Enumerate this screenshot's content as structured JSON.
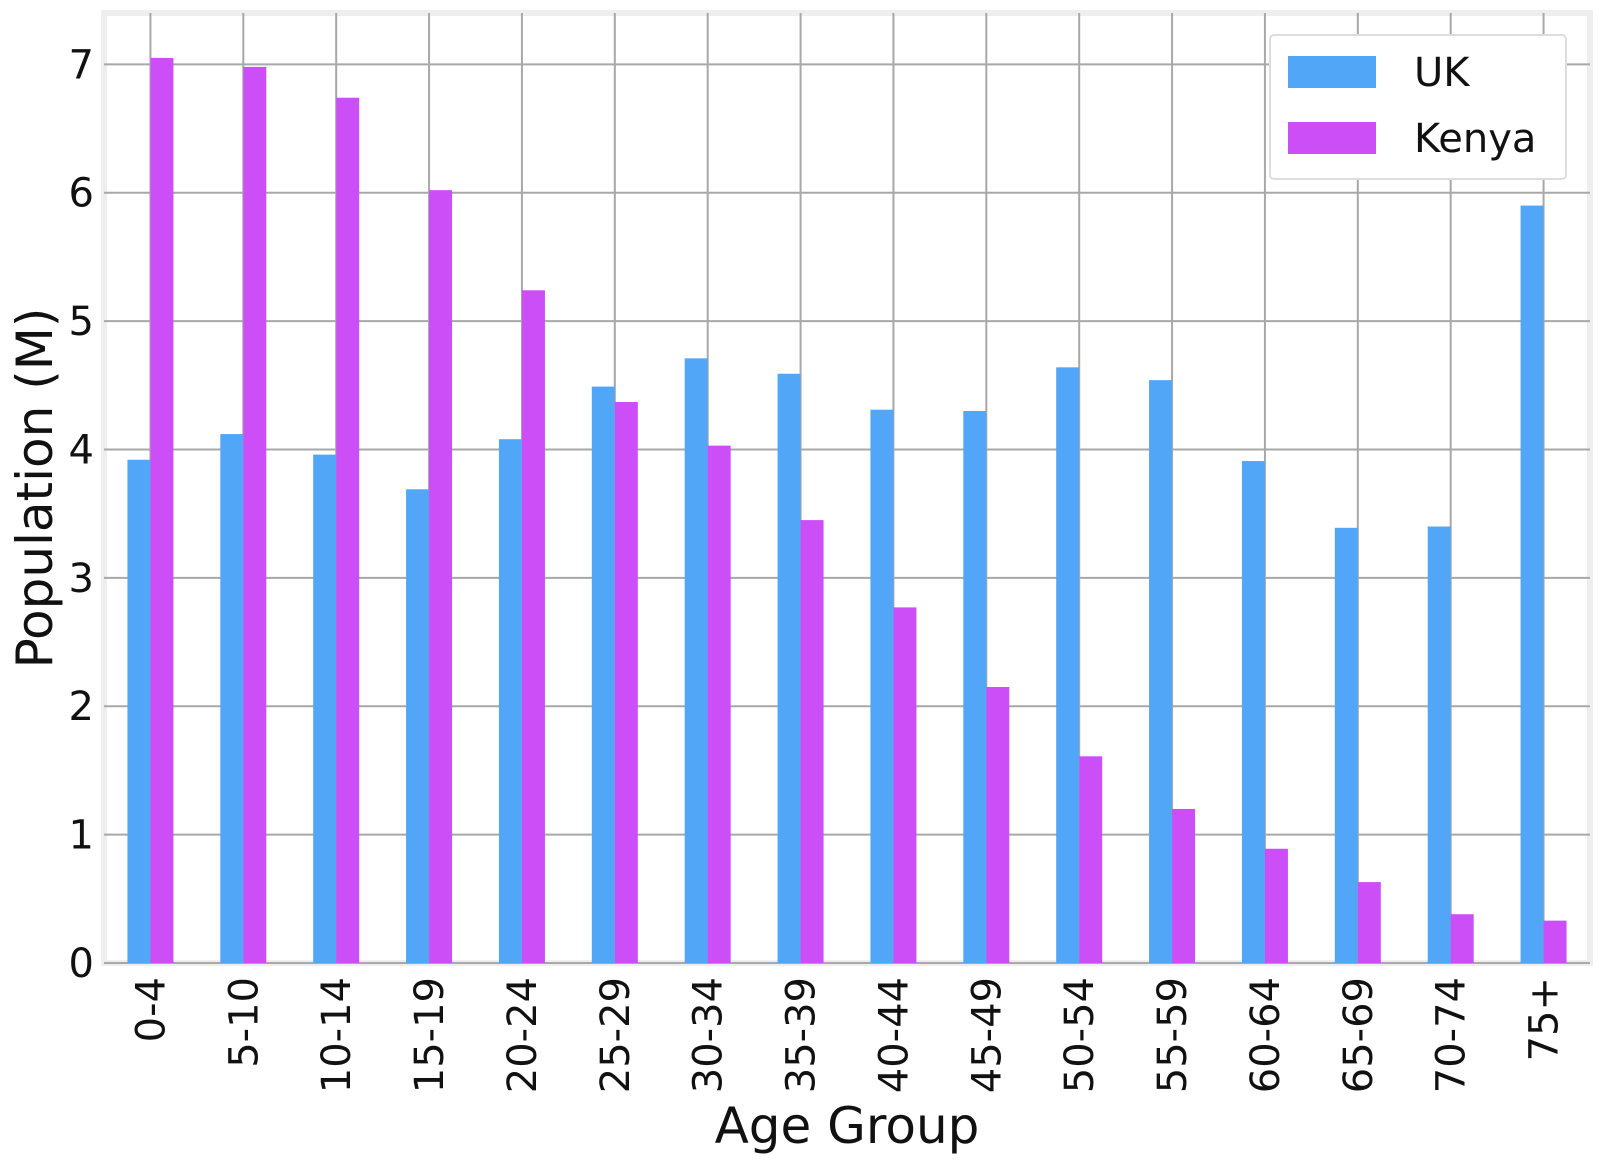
{
  "chart_data": {
    "type": "bar",
    "categories": [
      "0-4",
      "5-10",
      "10-14",
      "15-19",
      "20-24",
      "25-29",
      "30-34",
      "35-39",
      "40-44",
      "45-49",
      "50-54",
      "55-59",
      "60-64",
      "65-69",
      "70-74",
      "75+"
    ],
    "series": [
      {
        "name": "UK",
        "color": "#52a6f7",
        "values": [
          3.92,
          4.12,
          3.96,
          3.69,
          4.08,
          4.49,
          4.71,
          4.59,
          4.31,
          4.3,
          4.64,
          4.54,
          3.91,
          3.39,
          3.4,
          5.9
        ]
      },
      {
        "name": "Kenya",
        "color": "#cc4ef7",
        "values": [
          7.05,
          6.98,
          6.74,
          6.02,
          5.24,
          4.37,
          4.03,
          3.45,
          2.77,
          2.15,
          1.61,
          1.2,
          0.89,
          0.63,
          0.38,
          0.33
        ]
      }
    ],
    "xlabel": "Age Group",
    "ylabel": "Population (M)",
    "yticks": [
      "0",
      "1",
      "2",
      "3",
      "4",
      "5",
      "6",
      "7"
    ],
    "ylim": [
      0,
      7.4
    ],
    "grid": true,
    "legend": "top-right"
  }
}
